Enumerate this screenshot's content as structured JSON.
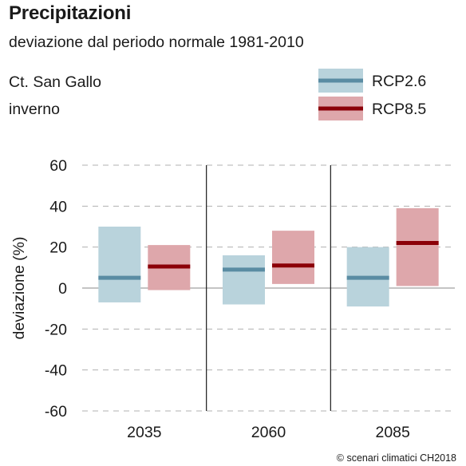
{
  "header": {
    "title": "Precipitazioni",
    "subtitle": "deviazione dal periodo normale 1981-2010",
    "region": "Ct. San Gallo",
    "season": "inverno"
  },
  "credit": "© scenari climatici CH2018",
  "colors": {
    "rcp26_box": "#b9d3dc",
    "rcp26_line": "#5a8ca3",
    "rcp85_box": "#dea7ab",
    "rcp85_line": "#8b0008",
    "grid": "#b0b0b0",
    "zero_line": "#a0a0a0",
    "separator": "#1a1a1a"
  },
  "chart_data": {
    "type": "bar",
    "title": "Precipitazioni",
    "subtitle": "deviazione dal periodo normale 1981-2010",
    "xlabel": "",
    "ylabel": "deviazione (%)",
    "ylim": [
      -60,
      60
    ],
    "yticks": [
      60,
      40,
      20,
      0,
      -20,
      -40,
      -60
    ],
    "grid": true,
    "legend_position": "top-right",
    "categories": [
      "2035",
      "2060",
      "2085"
    ],
    "series": [
      {
        "name": "RCP2.6",
        "low": [
          -7,
          -8,
          -9
        ],
        "median": [
          5,
          9,
          5
        ],
        "high": [
          30,
          16,
          20
        ]
      },
      {
        "name": "RCP8.5",
        "low": [
          -1,
          2,
          1
        ],
        "median": [
          10.5,
          11,
          22
        ],
        "high": [
          21,
          28,
          39
        ]
      }
    ]
  }
}
